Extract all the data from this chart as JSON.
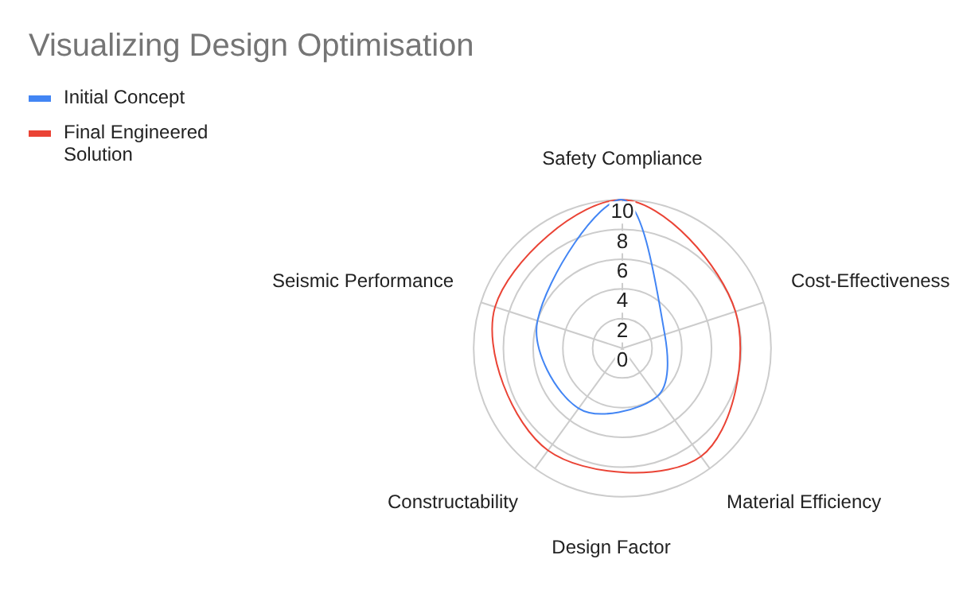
{
  "chart_data": {
    "type": "radar",
    "title": "Visualizing Design Optimisation",
    "xlabel": "Design Factor",
    "categories": [
      "Safety Compliance",
      "Cost-Effectiveness",
      "Material Efficiency",
      "Constructability",
      "Seismic Performance"
    ],
    "series": [
      {
        "name": "Initial Concept",
        "color": "#4285f4",
        "values": [
          10,
          3,
          4,
          5,
          6
        ]
      },
      {
        "name": "Final Engineered Solution",
        "color": "#ea4335",
        "values": [
          10,
          8,
          9,
          8.5,
          9
        ]
      }
    ],
    "ylim": [
      0,
      10
    ],
    "yticks": [
      0,
      2,
      4,
      6,
      8,
      10
    ],
    "grid": true,
    "legend": "top left",
    "marker": "none"
  }
}
